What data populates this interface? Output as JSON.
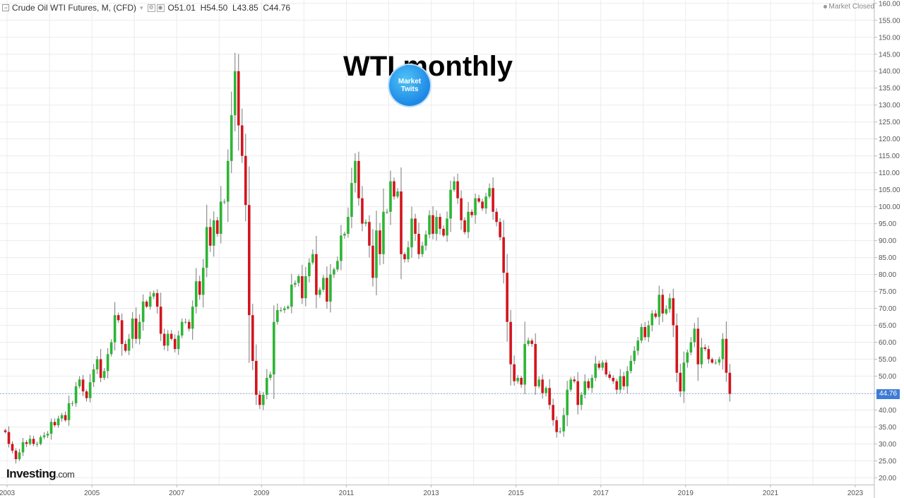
{
  "header": {
    "collapse_icon": "minus-square-icon",
    "symbol": "Crude Oil WTI Futures, M, (CFD)",
    "menu_icon": "dropdown-arrow-icon",
    "settings_icon": "gear-icon",
    "visibility_icon": "eye-icon",
    "open_label": "O",
    "open_value": "51.01",
    "high_label": "H",
    "high_value": "54.50",
    "low_label": "L",
    "low_value": "43.85",
    "close_label": "C",
    "close_value": "44.76"
  },
  "status": "Market Closed",
  "overlay_title": "WTI monthly",
  "market_twits_logo": {
    "line1": "Market",
    "line2": "Twits"
  },
  "branding": {
    "name": "Investing",
    "suffix": ".com"
  },
  "current_price_label": "44.76",
  "colors": {
    "up": "#2db535",
    "down": "#d3141c",
    "wick": "#777777",
    "grid": "#ececec",
    "price_tag": "#3e7bd6"
  },
  "chart_data": {
    "type": "candlestick",
    "title": "",
    "interval": "monthly",
    "ylim": [
      18.0,
      161.0
    ],
    "y_ticks": [
      "20.00",
      "25.00",
      "30.00",
      "35.00",
      "40.00",
      "45.00",
      "50.00",
      "55.00",
      "60.00",
      "65.00",
      "70.00",
      "75.00",
      "80.00",
      "85.00",
      "90.00",
      "95.00",
      "100.00",
      "105.00",
      "110.00",
      "115.00",
      "120.00",
      "125.00",
      "130.00",
      "135.00",
      "140.00",
      "145.00",
      "150.00",
      "155.00",
      "160.00"
    ],
    "x_ticks": [
      "2003",
      "2005",
      "2007",
      "2009",
      "2011",
      "2013",
      "2015",
      "2017",
      "2019",
      "2021",
      "2023"
    ],
    "x_range": [
      "2003-01",
      "2023-12"
    ],
    "first_candle": "2003-01",
    "close_series": [
      33.5,
      30.0,
      28.0,
      25.5,
      27.5,
      30.5,
      30.0,
      31.5,
      30.0,
      30.0,
      32.0,
      32.5,
      33.0,
      36.5,
      35.5,
      37.5,
      38.5,
      37.0,
      42.0,
      42.0,
      47.0,
      49.0,
      45.5,
      43.5,
      48.2,
      52.0,
      55.0,
      49.5,
      51.5,
      56.5,
      60.0,
      68.0,
      66.5,
      59.5,
      57.5,
      61.0,
      67.0,
      61.0,
      66.0,
      72.0,
      70.5,
      73.5,
      74.5,
      70.5,
      62.5,
      59.0,
      62.5,
      61.0,
      58.0,
      62.0,
      66.0,
      66.0,
      64.0,
      70.5,
      78.0,
      74.0,
      82.0,
      94.0,
      88.5,
      96.0,
      92.0,
      101.5,
      101.5,
      113.5,
      127.0,
      140.0,
      124.0,
      115.0,
      100.5,
      68.0,
      54.5,
      44.5,
      41.5,
      44.5,
      49.5,
      50.5,
      66.0,
      69.5,
      69.5,
      70.0,
      70.5,
      77.0,
      77.5,
      79.5,
      73.0,
      79.5,
      83.5,
      86.0,
      74.0,
      75.5,
      79.0,
      72.0,
      80.0,
      81.5,
      84.0,
      91.5,
      92.0,
      97.0,
      107.0,
      113.5,
      102.5,
      95.0,
      95.5,
      88.5,
      79.0,
      93.0,
      86.0,
      98.5,
      98.5,
      107.5,
      103.0,
      104.5,
      86.0,
      84.5,
      88.0,
      96.5,
      92.0,
      86.0,
      88.5,
      91.8,
      97.5,
      92.0,
      97.0,
      93.5,
      91.5,
      96.5,
      105.0,
      107.5,
      102.5,
      96.0,
      92.5,
      98.5,
      97.5,
      102.5,
      101.5,
      99.5,
      103.0,
      105.5,
      98.5,
      95.5,
      91.0,
      80.5,
      66.0,
      53.5,
      48.5,
      49.5,
      47.5,
      59.5,
      60.5,
      59.5,
      47.0,
      49.0,
      45.0,
      46.5,
      41.5,
      37.0,
      33.5,
      33.7,
      38.5,
      46.0,
      49.0,
      48.5,
      41.5,
      44.5,
      48.5,
      46.5,
      49.5,
      53.7,
      52.5,
      54.0,
      50.5,
      49.5,
      48.5,
      46.0,
      50.0,
      47.0,
      51.5,
      54.5,
      57.5,
      60.5,
      64.5,
      61.5,
      65.0,
      68.5,
      67.5,
      74.0,
      68.5,
      69.8,
      73.0,
      65.0,
      51.0,
      45.5,
      54.0,
      57.0,
      60.0,
      64.0,
      53.5,
      58.5,
      58.0,
      55.0,
      54.0,
      54.0,
      55.0,
      61.0,
      51.0,
      44.76
    ]
  }
}
